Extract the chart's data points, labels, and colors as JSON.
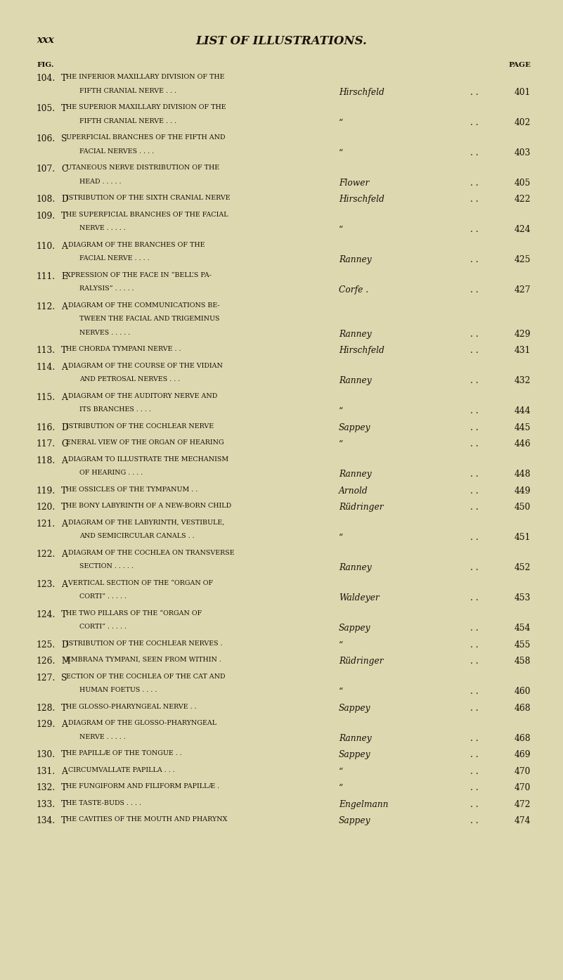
{
  "bg_color": "#ddd8b0",
  "text_color": "#1a1008",
  "header_left": "xxx",
  "header_center": "LIST OF ILLUSTRATIONS.",
  "col_fig": "FIG.",
  "col_page": "PAGE",
  "entries": [
    {
      "fig": "104.",
      "line1": "The inferior maxillary division of the",
      "line2": "fifth cranial nerve . . .",
      "author": "Hirschfeld",
      "page": "401"
    },
    {
      "fig": "105.",
      "line1": "The superior maxillary division of the",
      "line2": "fifth cranial nerve . . .",
      "author": "“",
      "page": "402"
    },
    {
      "fig": "106.",
      "line1": "Superficial branches of the fifth and",
      "line2": "facial nerves . . . .",
      "author": "“",
      "page": "403"
    },
    {
      "fig": "107.",
      "line1": "Cutaneous nerve distribution of the",
      "line2": "head . . . . .",
      "author": "Flower",
      "page": "405"
    },
    {
      "fig": "108.",
      "line1": "Distribution of the sixth cranial nerve",
      "line2": null,
      "author": "Hirschfeld",
      "page": "422",
      "inline": true
    },
    {
      "fig": "109.",
      "line1": "The superficial branches of the facial",
      "line2": "nerve . . . . .",
      "author": "“",
      "page": "424"
    },
    {
      "fig": "110.",
      "line1": "A diagram of the branches of the",
      "line2": "facial nerve . . . .",
      "author": "Ranney",
      "page": "425"
    },
    {
      "fig": "111.",
      "line1": "Expression of the face in “Bell’s pa-",
      "line2": "ralysis” . . . . .",
      "author": "Corfe .",
      "page": "427"
    },
    {
      "fig": "112.",
      "line1": "A diagram of the communications be-",
      "line2": "tween the facial and trigeminus",
      "line3": "nerves . . . . .",
      "author": "Ranney",
      "page": "429"
    },
    {
      "fig": "113.",
      "line1": "The chorda tympani nerve . .",
      "line2": null,
      "author": "Hirschfeld",
      "page": "431",
      "inline": true
    },
    {
      "fig": "114.",
      "line1": "A diagram of the course of the vidian",
      "line2": "and petrosal nerves . . .",
      "author": "Ranney",
      "page": "432"
    },
    {
      "fig": "115.",
      "line1": "A diagram of the auditory nerve and",
      "line2": "its branches . . . .",
      "author": "“",
      "page": "444"
    },
    {
      "fig": "116.",
      "line1": "Distribution of the cochlear nerve",
      "line2": null,
      "author": "Sappey",
      "page": "445",
      "inline": true,
      "dot1": true
    },
    {
      "fig": "117.",
      "line1": "General view of the organ of hearing",
      "line2": null,
      "author": "“",
      "page": "446",
      "inline": true
    },
    {
      "fig": "118.",
      "line1": "A diagram to illustrate the mechanism",
      "line2": "of hearing . . . .",
      "author": "Ranney",
      "page": "448"
    },
    {
      "fig": "119.",
      "line1": "The ossicles of the tympanum . .",
      "line2": null,
      "author": "Arnold",
      "page": "449",
      "inline": true
    },
    {
      "fig": "120.",
      "line1": "The bony labyrinth of a new-born child",
      "line2": null,
      "author": "Rüdringer",
      "page": "450",
      "inline": true
    },
    {
      "fig": "121.",
      "line1": "A diagram of the labyrinth, vestibule,",
      "line2": "and semicircular canals . .",
      "author": "“",
      "page": "451"
    },
    {
      "fig": "122.",
      "line1": "A diagram of the cochlea on transverse",
      "line2": "section . . . . .",
      "author": "Ranney",
      "page": "452"
    },
    {
      "fig": "123.",
      "line1": "A vertical section of the “organ of",
      "line2": "Corti” . . . . .",
      "author": "Waldeyer",
      "page": "453"
    },
    {
      "fig": "124.",
      "line1": "The two pillars of the “organ of",
      "line2": "Corti” . . . . .",
      "author": "Sappey",
      "page": "454"
    },
    {
      "fig": "125.",
      "line1": "Distribution of the cochlear nerves .",
      "line2": null,
      "author": "“",
      "page": "455",
      "inline": true
    },
    {
      "fig": "126.",
      "line1": "Membrana tympani, seen from within .",
      "line2": null,
      "author": "Rüdringer",
      "page": "458",
      "inline": true
    },
    {
      "fig": "127.",
      "line1": "Section of the cochlea of the cat and",
      "line2": "human foetus . . . .",
      "author": "“",
      "page": "460"
    },
    {
      "fig": "128.",
      "line1": "The glosso-pharyngeal nerve . .",
      "line2": null,
      "author": "Sappey",
      "page": "468",
      "inline": true
    },
    {
      "fig": "129.",
      "line1": "A diagram of the glosso-pharyngeal",
      "line2": "nerve . . . . .",
      "author": "Ranney",
      "page": "468"
    },
    {
      "fig": "130.",
      "line1": "The papillæ of the tongue . .",
      "line2": null,
      "author": "Sappey",
      "page": "469",
      "inline": true
    },
    {
      "fig": "131.",
      "line1": "A circumvallate papilla . . .",
      "line2": null,
      "author": "“",
      "page": "470",
      "inline": true
    },
    {
      "fig": "132.",
      "line1": "The fungiform and filiform papillæ .",
      "line2": null,
      "author": "“",
      "page": "470",
      "inline": true
    },
    {
      "fig": "133.",
      "line1": "The taste-buds . . . .",
      "line2": null,
      "author": "Engelmann",
      "page": "472",
      "inline": true
    },
    {
      "fig": "134.",
      "line1": "The cavities of the mouth and pharynx",
      "line2": null,
      "author": "Sappey",
      "page": "474",
      "inline": true
    }
  ]
}
